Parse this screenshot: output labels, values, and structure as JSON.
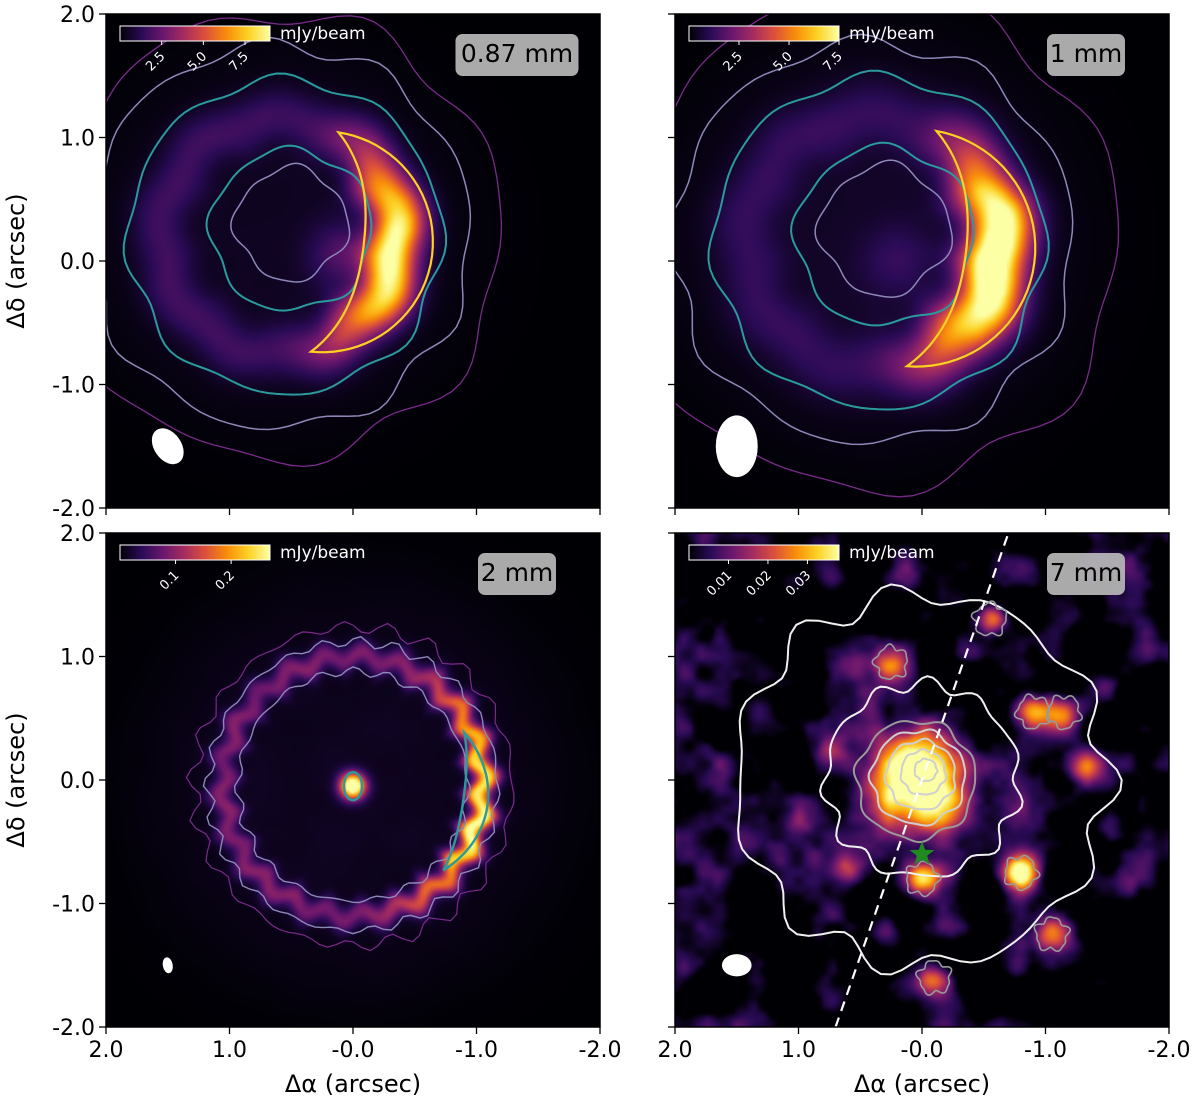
{
  "colors": {
    "background": "#000000",
    "colormap": [
      "#000004",
      "#2a0b56",
      "#6a176e",
      "#a52c60",
      "#dd513a",
      "#f98e09",
      "#fcd225",
      "#fcffa4"
    ],
    "contour_purple": "#7a2a8a",
    "contour_lavender": "#8d88b8",
    "contour_teal": "#2a9a9c",
    "contour_yellow": "#ffd21f",
    "contour_white": "#f0f0f0",
    "contour_gray": "#9a9a9a",
    "star": "#1f8a1f",
    "beam": "#ffffff",
    "badge": "#b8b8b8"
  },
  "icons": {
    "star": "star-icon"
  },
  "chart_data": [
    {
      "type": "heatmap",
      "wavelength_label": "0.87 mm",
      "colorbar_label": "mJy/beam",
      "colorbar_ticks": [
        "2.5",
        "5.0",
        "7.5"
      ],
      "colorbar_range": [
        0,
        9
      ],
      "xlim": [
        2.0,
        -2.0
      ],
      "ylim": [
        -2.0,
        2.0
      ],
      "x_ticks": [],
      "y_ticks": [
        "2.0",
        "1.0",
        "0.0",
        "-1.0",
        "-2.0"
      ],
      "xlabel": "",
      "ylabel": "Δδ (arcsec)",
      "ring": {
        "x0": 0.6,
        "y0": 0.2,
        "radius": 0.95,
        "width": 0.42,
        "peak": 9.0,
        "peak_angle_deg": -8,
        "asymmetry": 0.85
      },
      "center_source": {
        "x": 0.1,
        "y": 0.05,
        "peak": 1.6,
        "size": 0.18
      },
      "contour_levels": [
        1.0,
        2.0,
        3.0,
        7.0
      ],
      "beam": {
        "x": 1.5,
        "y": -1.5,
        "major": 0.32,
        "minor": 0.22,
        "pa_deg": 35
      }
    },
    {
      "type": "heatmap",
      "wavelength_label": "1 mm",
      "colorbar_label": "mJy/beam",
      "colorbar_ticks": [
        "2.5",
        "5.0",
        "7.5"
      ],
      "colorbar_range": [
        0,
        7.5
      ],
      "xlim": [
        2.0,
        -2.0
      ],
      "ylim": [
        -2.0,
        2.0
      ],
      "x_ticks": [],
      "y_ticks": [],
      "xlabel": "",
      "ylabel": "",
      "ring": {
        "x0": 0.4,
        "y0": 0.15,
        "radius": 1.02,
        "width": 0.5,
        "peak": 9.0,
        "peak_angle_deg": -10,
        "asymmetry": 0.9
      },
      "center_source": {
        "x": 0.2,
        "y": 0.0,
        "peak": 0.8,
        "size": 0.2
      },
      "contour_levels": [
        0.8,
        1.8,
        3.0,
        7.0
      ],
      "beam": {
        "x": 1.5,
        "y": -1.5,
        "major": 0.5,
        "minor": 0.34,
        "pa_deg": 0
      }
    },
    {
      "type": "heatmap",
      "wavelength_label": "2 mm",
      "colorbar_label": "mJy/beam",
      "colorbar_ticks": [
        "0.1",
        "0.2"
      ],
      "colorbar_range": [
        0,
        0.27
      ],
      "xlim": [
        2.0,
        -2.0
      ],
      "ylim": [
        -2.0,
        2.0
      ],
      "x_ticks": [
        "2.0",
        "1.0",
        "-0.0",
        "-1.0",
        "-2.0"
      ],
      "y_ticks": [
        "2.0",
        "1.0",
        "0.0",
        "-1.0",
        "-2.0"
      ],
      "xlabel": "Δα (arcsec)",
      "ylabel": "Δδ (arcsec)",
      "ring": {
        "x0": 0.0,
        "y0": -0.05,
        "radius": 1.05,
        "width": 0.2,
        "peak": 0.26,
        "peak_angle_deg": -10,
        "asymmetry": 0.7
      },
      "center_source": {
        "x": 0.0,
        "y": -0.05,
        "peak": 0.35,
        "size": 0.07
      },
      "contour_levels": [
        0.05,
        0.1,
        0.2
      ],
      "beam": {
        "x": 1.5,
        "y": -1.5,
        "major": 0.13,
        "minor": 0.08,
        "pa_deg": 10
      }
    },
    {
      "type": "heatmap",
      "wavelength_label": "7 mm",
      "colorbar_label": "mJy/beam",
      "colorbar_ticks": [
        "0.01",
        "0.02",
        "0.03"
      ],
      "colorbar_range": [
        0,
        0.038
      ],
      "xlim": [
        2.0,
        -2.0
      ],
      "ylim": [
        -2.0,
        2.0
      ],
      "x_ticks": [
        "2.0",
        "1.0",
        "-0.0",
        "-1.0",
        "-2.0"
      ],
      "y_ticks": [],
      "xlabel": "Δα (arcsec)",
      "ylabel": "",
      "center_source": {
        "x": 0.05,
        "y": 0.0,
        "peak": 0.06,
        "size": 0.28
      },
      "clumps": [
        [
          -0.55,
          1.3,
          0.03
        ],
        [
          0.25,
          0.95,
          0.025
        ],
        [
          -0.9,
          0.55,
          0.03
        ],
        [
          -1.15,
          0.55,
          0.025
        ],
        [
          -0.8,
          -0.75,
          0.04
        ],
        [
          0.0,
          -0.8,
          0.03
        ],
        [
          -1.05,
          -1.25,
          0.025
        ],
        [
          -0.1,
          -1.6,
          0.025
        ],
        [
          0.6,
          -0.7,
          0.018
        ],
        [
          0.75,
          0.2,
          0.015
        ],
        [
          -1.3,
          0.1,
          0.018
        ],
        [
          0.55,
          0.95,
          0.012
        ],
        [
          -0.35,
          1.05,
          0.014
        ],
        [
          0.3,
          -1.2,
          0.014
        ],
        [
          -1.5,
          -0.4,
          0.014
        ],
        [
          0.9,
          -0.3,
          0.012
        ]
      ],
      "contour_levels": [
        0.015,
        0.03,
        0.045
      ],
      "overlay_rings": [
        {
          "radius": 0.78,
          "ring": "inner"
        },
        {
          "radius": 1.5,
          "ring": "outer"
        }
      ],
      "dashed_line": {
        "x1": 0.7,
        "y1": -2.0,
        "x2": -0.7,
        "y2": 2.0
      },
      "star": {
        "x": 0.0,
        "y": -0.6
      },
      "beam": {
        "x": 1.5,
        "y": -1.5,
        "major": 0.24,
        "minor": 0.18,
        "pa_deg": 90
      }
    }
  ]
}
